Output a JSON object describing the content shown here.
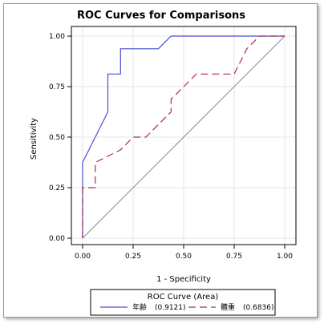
{
  "chart_data": {
    "type": "line",
    "title": "ROC Curves for Comparisons",
    "xlabel": "1 - Specificity",
    "ylabel": "Sensitivity",
    "xlim": [
      0,
      1
    ],
    "ylim": [
      0,
      1
    ],
    "xticks": [
      "0.00",
      "0.25",
      "0.50",
      "0.75",
      "1.00"
    ],
    "yticks": [
      "0.00",
      "0.25",
      "0.50",
      "0.75",
      "1.00"
    ],
    "grid": true,
    "legend": {
      "title": "ROC Curve (Area)",
      "position": "bottom"
    },
    "series": [
      {
        "name": "年齢",
        "area_label": "(0.9121)",
        "color": "#4a4ad8",
        "style": "solid",
        "x": [
          0,
          0,
          0.0625,
          0.125,
          0.125,
          0.1875,
          0.1875,
          0.375,
          0.4375,
          1.0
        ],
        "y": [
          0,
          0.375,
          0.5,
          0.625,
          0.8125,
          0.8125,
          0.9375,
          0.9375,
          1.0,
          1.0
        ]
      },
      {
        "name": "體重",
        "area_label": "(0.6836)",
        "color": "#b02a3c",
        "style": "dashed",
        "x": [
          0,
          0,
          0.0625,
          0.0625,
          0.1875,
          0.25,
          0.3125,
          0.4375,
          0.4375,
          0.5625,
          0.75,
          0.8125,
          0.875,
          1.0
        ],
        "y": [
          0,
          0.25,
          0.25,
          0.375,
          0.4375,
          0.5,
          0.5,
          0.625,
          0.6875,
          0.8125,
          0.8125,
          0.9375,
          1.0,
          1.0
        ]
      },
      {
        "name": "",
        "color": "#8c8c8c",
        "style": "solid",
        "reference": true,
        "x": [
          0,
          1
        ],
        "y": [
          0,
          1
        ]
      }
    ]
  }
}
